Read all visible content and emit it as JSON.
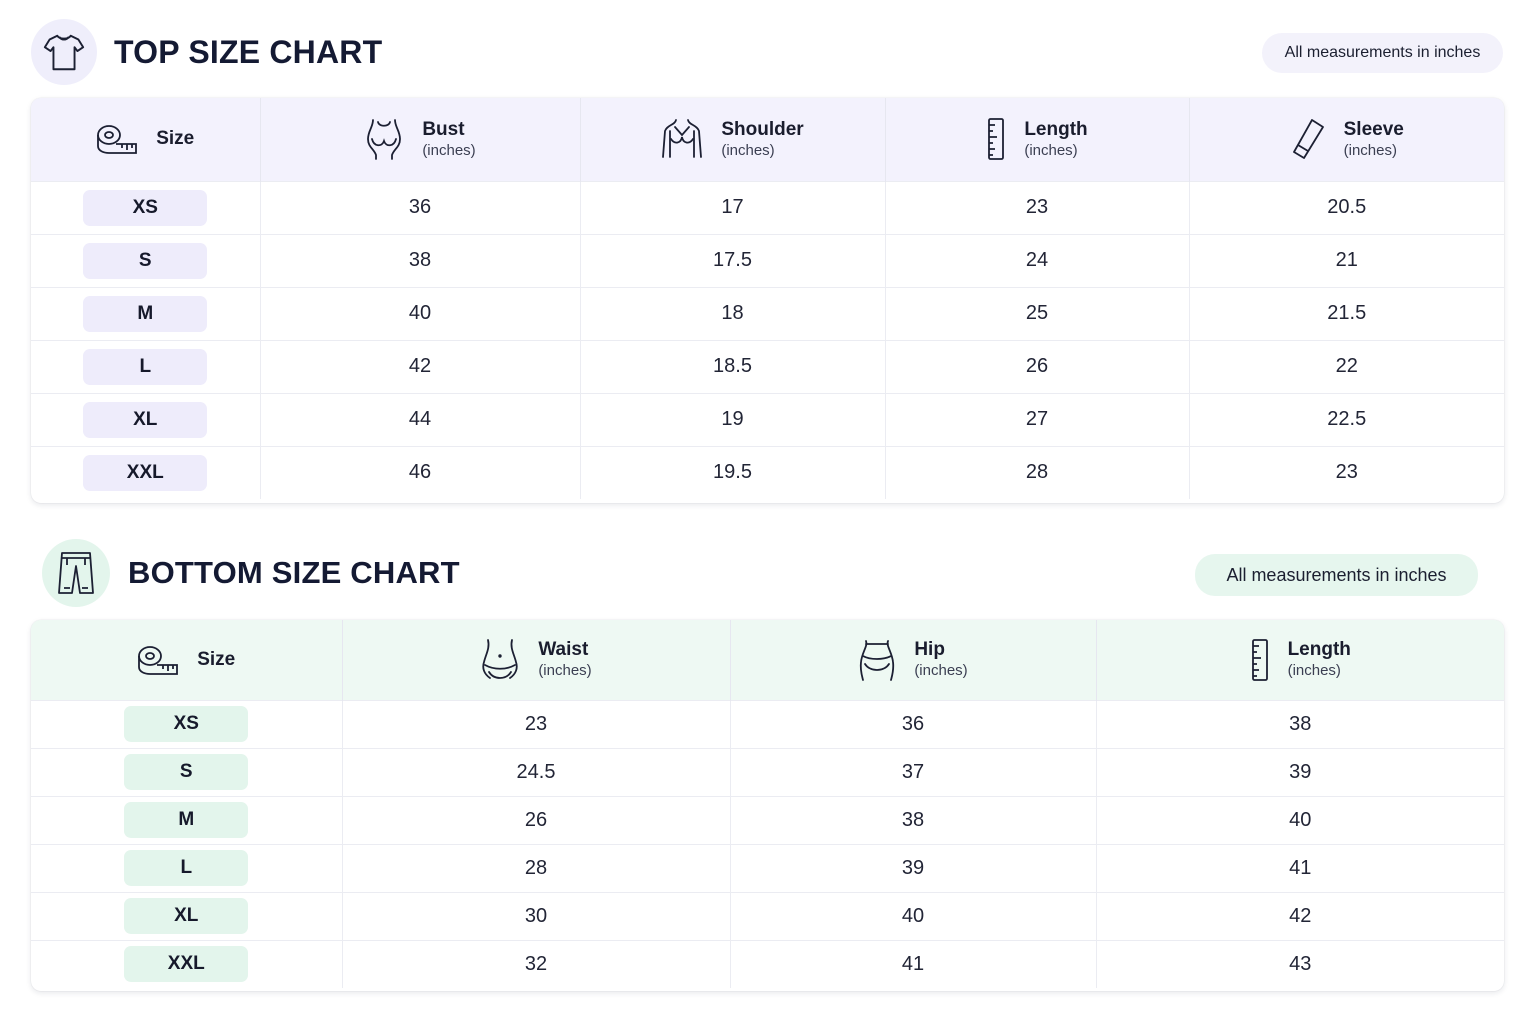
{
  "top": {
    "title": "TOP SIZE CHART",
    "note": "All measurements in inches",
    "size_header": "Size",
    "columns": [
      {
        "name": "Bust",
        "unit": "(inches)",
        "icon": "bust-icon"
      },
      {
        "name": "Shoulder",
        "unit": "(inches)",
        "icon": "shoulder-icon"
      },
      {
        "name": "Length",
        "unit": "(inches)",
        "icon": "ruler-icon"
      },
      {
        "name": "Sleeve",
        "unit": "(inches)",
        "icon": "sleeve-icon"
      }
    ],
    "rows": [
      {
        "size": "XS",
        "values": [
          "36",
          "17",
          "23",
          "20.5"
        ]
      },
      {
        "size": "S",
        "values": [
          "38",
          "17.5",
          "24",
          "21"
        ]
      },
      {
        "size": "M",
        "values": [
          "40",
          "18",
          "25",
          "21.5"
        ]
      },
      {
        "size": "L",
        "values": [
          "42",
          "18.5",
          "26",
          "22"
        ]
      },
      {
        "size": "XL",
        "values": [
          "44",
          "19",
          "27",
          "22.5"
        ]
      },
      {
        "size": "XXL",
        "values": [
          "46",
          "19.5",
          "28",
          "23"
        ]
      }
    ]
  },
  "bottom": {
    "title": "BOTTOM SIZE CHART",
    "note": "All measurements in inches",
    "size_header": "Size",
    "columns": [
      {
        "name": "Waist",
        "unit": "(inches)",
        "icon": "waist-icon"
      },
      {
        "name": "Hip",
        "unit": "(inches)",
        "icon": "hip-icon"
      },
      {
        "name": "Length",
        "unit": "(inches)",
        "icon": "ruler-icon"
      }
    ],
    "rows": [
      {
        "size": "XS",
        "values": [
          "23",
          "36",
          "38"
        ]
      },
      {
        "size": "S",
        "values": [
          "24.5",
          "37",
          "39"
        ]
      },
      {
        "size": "M",
        "values": [
          "26",
          "38",
          "40"
        ]
      },
      {
        "size": "L",
        "values": [
          "28",
          "39",
          "41"
        ]
      },
      {
        "size": "XL",
        "values": [
          "30",
          "40",
          "42"
        ]
      },
      {
        "size": "XXL",
        "values": [
          "32",
          "41",
          "43"
        ]
      }
    ]
  },
  "colors": {
    "top_header_bg": "#f3f2fd",
    "top_accent": "#eeecfb",
    "bottom_header_bg": "#eef9f3",
    "bottom_accent": "#e3f5ec"
  }
}
